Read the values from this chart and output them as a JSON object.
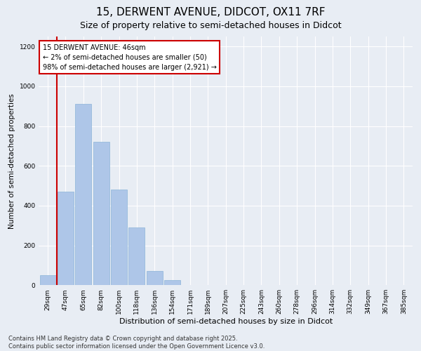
{
  "title1": "15, DERWENT AVENUE, DIDCOT, OX11 7RF",
  "title2": "Size of property relative to semi-detached houses in Didcot",
  "xlabel": "Distribution of semi-detached houses by size in Didcot",
  "ylabel": "Number of semi-detached properties",
  "categories": [
    "29sqm",
    "47sqm",
    "65sqm",
    "82sqm",
    "100sqm",
    "118sqm",
    "136sqm",
    "154sqm",
    "171sqm",
    "189sqm",
    "207sqm",
    "225sqm",
    "243sqm",
    "260sqm",
    "278sqm",
    "296sqm",
    "314sqm",
    "332sqm",
    "349sqm",
    "367sqm",
    "385sqm"
  ],
  "values": [
    50,
    470,
    910,
    720,
    480,
    290,
    70,
    25,
    0,
    0,
    0,
    0,
    0,
    0,
    0,
    0,
    0,
    0,
    0,
    0,
    0
  ],
  "bar_color": "#aec6e8",
  "bar_edge_color": "#8cb4d8",
  "highlight_color": "#cc0000",
  "annotation_text": "15 DERWENT AVENUE: 46sqm\n← 2% of semi-detached houses are smaller (50)\n98% of semi-detached houses are larger (2,921) →",
  "annotation_box_color": "#ffffff",
  "annotation_box_edge_color": "#cc0000",
  "ylim": [
    0,
    1250
  ],
  "yticks": [
    0,
    200,
    400,
    600,
    800,
    1000,
    1200
  ],
  "background_color": "#e8edf4",
  "plot_background_color": "#e8edf4",
  "footer_line1": "Contains HM Land Registry data © Crown copyright and database right 2025.",
  "footer_line2": "Contains public sector information licensed under the Open Government Licence v3.0.",
  "title1_fontsize": 11,
  "title2_fontsize": 9,
  "xlabel_fontsize": 8,
  "ylabel_fontsize": 7.5,
  "tick_fontsize": 6.5,
  "annotation_fontsize": 7,
  "footer_fontsize": 6
}
